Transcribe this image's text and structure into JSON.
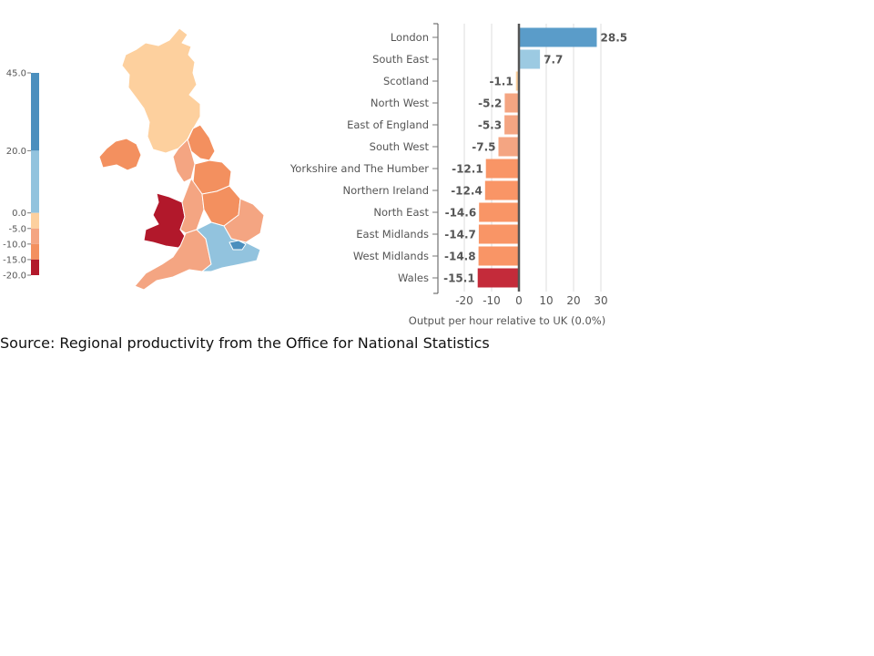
{
  "chart_data": [
    {
      "type": "map",
      "legend": {
        "ticks": [
          45.0,
          20.0,
          0.0,
          -5.0,
          -10.0,
          -15.0,
          -20.0
        ],
        "tick_labels": [
          "45.0",
          "20.0",
          "0.0",
          "-5.0",
          "-10.0",
          "-15.0",
          "-20.0"
        ],
        "bins": [
          {
            "from": 20.0,
            "to": 45.0,
            "color": "#4b8fbe"
          },
          {
            "from": 0.0,
            "to": 20.0,
            "color": "#92c3de"
          },
          {
            "from": -5.0,
            "to": 0.0,
            "color": "#fdd09e"
          },
          {
            "from": -10.0,
            "to": -5.0,
            "color": "#f4a582"
          },
          {
            "from": -15.0,
            "to": -10.0,
            "color": "#f3905f"
          },
          {
            "from": -20.0,
            "to": -15.0,
            "color": "#b2182b"
          }
        ]
      }
    },
    {
      "type": "bar",
      "orientation": "horizontal",
      "categories": [
        "London",
        "South East",
        "Scotland",
        "North West",
        "East of England",
        "South West",
        "Yorkshire and The Humber",
        "Northern Ireland",
        "North East",
        "East Midlands",
        "West Midlands",
        "Wales"
      ],
      "values": [
        28.5,
        7.7,
        -1.1,
        -5.2,
        -5.3,
        -7.5,
        -12.1,
        -12.4,
        -14.6,
        -14.7,
        -14.8,
        -15.1
      ],
      "value_labels": [
        "28.5",
        "7.7",
        "-1.1",
        "-5.2",
        "-5.3",
        "-7.5",
        "-12.1",
        "-12.4",
        "-14.6",
        "-14.7",
        "-14.8",
        "-15.1"
      ],
      "colors": [
        "#5a9cc9",
        "#9ccae2",
        "#fdd09e",
        "#f4a582",
        "#f4a582",
        "#f4a582",
        "#f99566",
        "#f99566",
        "#f99566",
        "#f99566",
        "#f99566",
        "#c42b3a"
      ],
      "xlim": [
        -20,
        30
      ],
      "xticks": [
        -20,
        -10,
        0,
        10,
        20,
        30
      ],
      "xtick_labels": [
        "-20",
        "-10",
        "0",
        "10",
        "20",
        "30"
      ],
      "xlabel": "Output per hour relative to UK (0.0%)",
      "grid": true
    }
  ],
  "colors": {
    "map_london": "#4b8fbe",
    "map_south_east": "#92c3de",
    "map_scotland": "#fdd09e",
    "map_north": "#f4a582",
    "map_mid": "#f3905f",
    "map_wales": "#b2182b"
  },
  "source_note": "Source: Regional productivity from the Office for National Statistics"
}
